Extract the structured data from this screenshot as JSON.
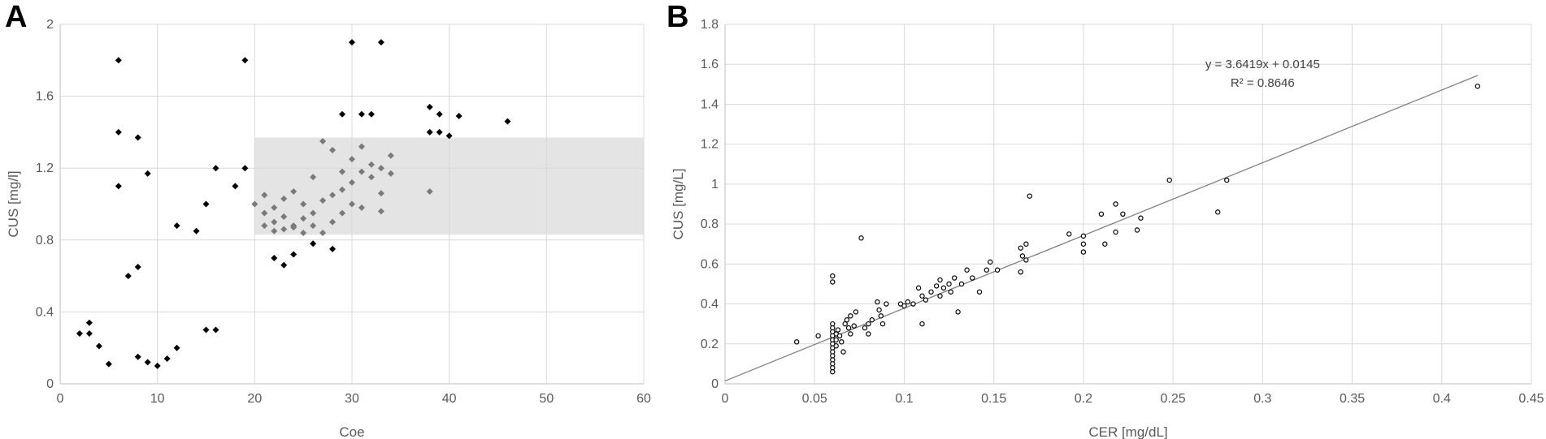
{
  "chart_data": [
    {
      "panel": "A",
      "type": "scatter",
      "xlabel": "Coe",
      "ylabel": "CUS [mg/l]",
      "xlim": [
        0,
        60
      ],
      "ylim": [
        0,
        2
      ],
      "xticks": [
        "0",
        "10",
        "20",
        "30",
        "40",
        "50",
        "60"
      ],
      "yticks": [
        "0",
        "0.4",
        "0.8",
        "1.2",
        "1.6",
        "2"
      ],
      "grid": true,
      "shaded_region": {
        "x": [
          20,
          60
        ],
        "y": [
          0.83,
          1.37
        ],
        "color": "#e4e4e4"
      },
      "series": [
        {
          "color": "#000000",
          "marker": "diamond",
          "points": [
            [
              2,
              0.28
            ],
            [
              3,
              0.34
            ],
            [
              3,
              0.28
            ],
            [
              4,
              0.21
            ],
            [
              5,
              0.11
            ],
            [
              6,
              1.8
            ],
            [
              6,
              1.4
            ],
            [
              6,
              1.1
            ],
            [
              8,
              1.37
            ],
            [
              9,
              1.17
            ],
            [
              19,
              1.8
            ],
            [
              19,
              1.2
            ],
            [
              18,
              1.1
            ],
            [
              16,
              1.2
            ],
            [
              15,
              1.0
            ],
            [
              12,
              0.88
            ],
            [
              14,
              0.85
            ],
            [
              30,
              1.9
            ],
            [
              33,
              1.9
            ],
            [
              29,
              1.5
            ],
            [
              31,
              1.5
            ],
            [
              32,
              1.5
            ],
            [
              38,
              1.54
            ],
            [
              39,
              1.5
            ],
            [
              38,
              1.4
            ],
            [
              39,
              1.4
            ],
            [
              40,
              1.38
            ],
            [
              41,
              1.49
            ],
            [
              46,
              1.46
            ],
            [
              28,
              0.75
            ],
            [
              26,
              0.78
            ],
            [
              24,
              0.72
            ],
            [
              22,
              0.7
            ],
            [
              23,
              0.66
            ],
            [
              8,
              0.15
            ],
            [
              9,
              0.12
            ],
            [
              10,
              0.1
            ],
            [
              11,
              0.14
            ],
            [
              12,
              0.2
            ],
            [
              15,
              0.3
            ],
            [
              16,
              0.3
            ],
            [
              7,
              0.6
            ],
            [
              8,
              0.65
            ]
          ]
        },
        {
          "color": "#7a7a7a",
          "marker": "diamond",
          "points": [
            [
              21,
              1.05
            ],
            [
              22,
              0.98
            ],
            [
              23,
              1.03
            ],
            [
              24,
              1.07
            ],
            [
              25,
              1.0
            ],
            [
              26,
              1.15
            ],
            [
              27,
              1.35
            ],
            [
              28,
              1.3
            ],
            [
              29,
              1.18
            ],
            [
              30,
              1.25
            ],
            [
              31,
              1.32
            ],
            [
              32,
              1.22
            ],
            [
              33,
              1.2
            ],
            [
              34,
              1.27
            ],
            [
              21,
              0.95
            ],
            [
              22,
              0.9
            ],
            [
              23,
              0.93
            ],
            [
              24,
              0.88
            ],
            [
              25,
              0.92
            ],
            [
              26,
              0.95
            ],
            [
              27,
              1.02
            ],
            [
              28,
              1.05
            ],
            [
              29,
              1.08
            ],
            [
              30,
              1.12
            ],
            [
              31,
              1.18
            ],
            [
              32,
              1.15
            ],
            [
              33,
              1.06
            ],
            [
              34,
              1.17
            ],
            [
              38,
              1.07
            ],
            [
              22,
              0.85
            ],
            [
              24,
              0.87
            ],
            [
              25,
              0.84
            ],
            [
              26,
              0.88
            ],
            [
              27,
              0.84
            ],
            [
              28,
              0.9
            ],
            [
              30,
              1.0
            ],
            [
              31,
              0.98
            ],
            [
              33,
              0.96
            ],
            [
              20,
              1.0
            ],
            [
              21,
              0.88
            ],
            [
              23,
              0.86
            ],
            [
              29,
              0.95
            ]
          ]
        }
      ]
    },
    {
      "panel": "B",
      "type": "scatter",
      "xlabel": "CER [mg/dL]",
      "ylabel": "CUS [mg/L]",
      "xlim": [
        0,
        0.45
      ],
      "ylim": [
        0,
        1.8
      ],
      "xticks": [
        "0",
        "0.05",
        "0.1",
        "0.15",
        "0.2",
        "0.25",
        "0.3",
        "0.35",
        "0.4",
        "0.45"
      ],
      "yticks": [
        "0",
        "0.2",
        "0.4",
        "0.6",
        "0.8",
        "1",
        "1.2",
        "1.4",
        "1.6",
        "1.8"
      ],
      "grid": true,
      "trendline": {
        "slope": 3.6419,
        "intercept": 0.0145,
        "x_range": [
          0,
          0.42
        ]
      },
      "annotations": [
        "y = 3.6419x + 0.0145",
        "R² = 0.8646"
      ],
      "series": [
        {
          "color": "#000000",
          "marker": "open-circle",
          "points": [
            [
              0.04,
              0.21
            ],
            [
              0.052,
              0.24
            ],
            [
              0.06,
              0.54
            ],
            [
              0.06,
              0.51
            ],
            [
              0.06,
              0.3
            ],
            [
              0.06,
              0.28
            ],
            [
              0.06,
              0.26
            ],
            [
              0.06,
              0.24
            ],
            [
              0.06,
              0.22
            ],
            [
              0.06,
              0.2
            ],
            [
              0.06,
              0.18
            ],
            [
              0.06,
              0.16
            ],
            [
              0.06,
              0.14
            ],
            [
              0.06,
              0.12
            ],
            [
              0.06,
              0.1
            ],
            [
              0.06,
              0.08
            ],
            [
              0.06,
              0.06
            ],
            [
              0.062,
              0.25
            ],
            [
              0.062,
              0.22
            ],
            [
              0.062,
              0.19
            ],
            [
              0.063,
              0.27
            ],
            [
              0.064,
              0.24
            ],
            [
              0.065,
              0.21
            ],
            [
              0.066,
              0.16
            ],
            [
              0.067,
              0.3
            ],
            [
              0.068,
              0.32
            ],
            [
              0.069,
              0.28
            ],
            [
              0.07,
              0.34
            ],
            [
              0.07,
              0.25
            ],
            [
              0.072,
              0.29
            ],
            [
              0.073,
              0.36
            ],
            [
              0.076,
              0.73
            ],
            [
              0.078,
              0.28
            ],
            [
              0.08,
              0.3
            ],
            [
              0.08,
              0.25
            ],
            [
              0.082,
              0.32
            ],
            [
              0.085,
              0.41
            ],
            [
              0.086,
              0.37
            ],
            [
              0.087,
              0.34
            ],
            [
              0.088,
              0.3
            ],
            [
              0.09,
              0.4
            ],
            [
              0.098,
              0.4
            ],
            [
              0.1,
              0.39
            ],
            [
              0.102,
              0.41
            ],
            [
              0.105,
              0.4
            ],
            [
              0.108,
              0.48
            ],
            [
              0.11,
              0.44
            ],
            [
              0.11,
              0.3
            ],
            [
              0.112,
              0.42
            ],
            [
              0.115,
              0.46
            ],
            [
              0.118,
              0.49
            ],
            [
              0.12,
              0.44
            ],
            [
              0.12,
              0.52
            ],
            [
              0.122,
              0.48
            ],
            [
              0.125,
              0.5
            ],
            [
              0.126,
              0.46
            ],
            [
              0.128,
              0.53
            ],
            [
              0.13,
              0.36
            ],
            [
              0.132,
              0.5
            ],
            [
              0.135,
              0.57
            ],
            [
              0.138,
              0.53
            ],
            [
              0.142,
              0.46
            ],
            [
              0.146,
              0.57
            ],
            [
              0.148,
              0.61
            ],
            [
              0.152,
              0.57
            ],
            [
              0.165,
              0.68
            ],
            [
              0.165,
              0.56
            ],
            [
              0.166,
              0.64
            ],
            [
              0.168,
              0.62
            ],
            [
              0.168,
              0.7
            ],
            [
              0.17,
              0.94
            ],
            [
              0.192,
              0.75
            ],
            [
              0.2,
              0.74
            ],
            [
              0.2,
              0.7
            ],
            [
              0.2,
              0.66
            ],
            [
              0.21,
              0.85
            ],
            [
              0.212,
              0.7
            ],
            [
              0.218,
              0.76
            ],
            [
              0.218,
              0.9
            ],
            [
              0.222,
              0.85
            ],
            [
              0.23,
              0.77
            ],
            [
              0.232,
              0.83
            ],
            [
              0.248,
              1.02
            ],
            [
              0.275,
              0.86
            ],
            [
              0.28,
              1.02
            ],
            [
              0.42,
              1.49
            ]
          ]
        }
      ]
    }
  ]
}
